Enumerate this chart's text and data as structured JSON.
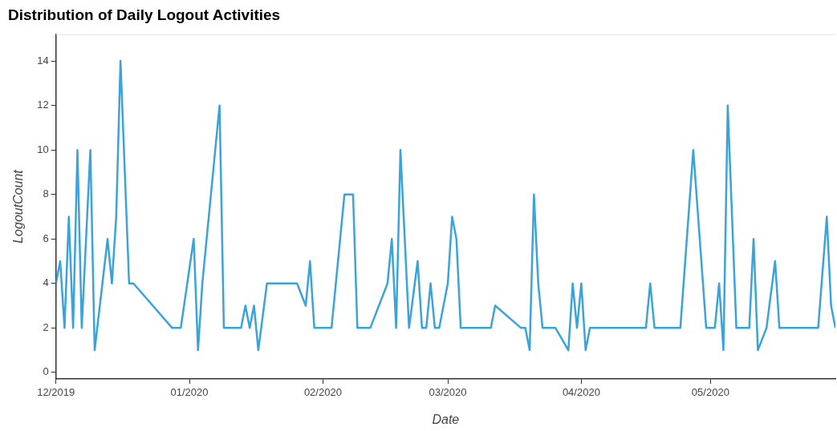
{
  "chart_data": {
    "type": "line",
    "title": "Distribution of Daily Logout Activities",
    "xlabel": "Date",
    "ylabel": "LogoutCount",
    "x": [
      "2019-12-01",
      "2019-12-02",
      "2019-12-03",
      "2019-12-04",
      "2019-12-05",
      "2019-12-06",
      "2019-12-07",
      "2019-12-09",
      "2019-12-10",
      "2019-12-13",
      "2019-12-14",
      "2019-12-15",
      "2019-12-16",
      "2019-12-18",
      "2019-12-19",
      "2019-12-28",
      "2019-12-30",
      "2020-01-02",
      "2020-01-03",
      "2020-01-04",
      "2020-01-08",
      "2020-01-09",
      "2020-01-13",
      "2020-01-14",
      "2020-01-15",
      "2020-01-16",
      "2020-01-17",
      "2020-01-19",
      "2020-01-26",
      "2020-01-28",
      "2020-01-29",
      "2020-01-30",
      "2020-02-03",
      "2020-02-06",
      "2020-02-08",
      "2020-02-09",
      "2020-02-12",
      "2020-02-16",
      "2020-02-17",
      "2020-02-18",
      "2020-02-19",
      "2020-02-21",
      "2020-02-23",
      "2020-02-24",
      "2020-02-25",
      "2020-02-26",
      "2020-02-27",
      "2020-02-28",
      "2020-03-01",
      "2020-03-02",
      "2020-03-03",
      "2020-03-04",
      "2020-03-11",
      "2020-03-12",
      "2020-03-18",
      "2020-03-19",
      "2020-03-20",
      "2020-03-21",
      "2020-03-22",
      "2020-03-23",
      "2020-03-26",
      "2020-03-29",
      "2020-03-30",
      "2020-03-31",
      "2020-04-01",
      "2020-04-02",
      "2020-04-03",
      "2020-04-16",
      "2020-04-17",
      "2020-04-18",
      "2020-04-24",
      "2020-04-27",
      "2020-04-30",
      "2020-05-02",
      "2020-05-03",
      "2020-05-04",
      "2020-05-05",
      "2020-05-07",
      "2020-05-10",
      "2020-05-11",
      "2020-05-12",
      "2020-05-14",
      "2020-05-16",
      "2020-05-17",
      "2020-05-26",
      "2020-05-28",
      "2020-05-29",
      "2020-05-30"
    ],
    "series": [
      {
        "color": "#3aa3dc",
        "values": [
          4,
          5,
          2,
          7,
          2,
          10,
          2,
          10,
          1,
          6,
          4,
          7,
          14,
          4,
          4,
          2,
          2,
          6,
          1,
          4,
          12,
          2,
          2,
          3,
          2,
          3,
          1,
          4,
          4,
          3,
          5,
          2,
          2,
          8,
          8,
          2,
          2,
          4,
          6,
          2,
          10,
          2,
          5,
          2,
          2,
          4,
          2,
          2,
          4,
          7,
          6,
          2,
          2,
          3,
          2,
          2,
          1,
          8,
          4,
          2,
          2,
          1,
          4,
          2,
          4,
          1,
          2,
          2,
          4,
          2,
          2,
          10,
          2,
          2,
          4,
          1,
          12,
          2,
          2,
          6,
          1,
          2,
          5,
          2,
          2,
          7,
          3,
          2
        ]
      }
    ],
    "xlim": [
      "2019-12-01",
      "2020-05-30"
    ],
    "xticks": [
      {
        "value": "2019-12-01",
        "label": "12/2019"
      },
      {
        "value": "2020-01-01",
        "label": "01/2020"
      },
      {
        "value": "2020-02-01",
        "label": "02/2020"
      },
      {
        "value": "2020-03-01",
        "label": "03/2020"
      },
      {
        "value": "2020-04-01",
        "label": "04/2020"
      },
      {
        "value": "2020-05-01",
        "label": "05/2020"
      }
    ],
    "ylim": [
      -0.3,
      15.2
    ],
    "yticks": [
      0,
      2,
      4,
      6,
      8,
      10,
      12,
      14
    ],
    "grid": false,
    "legend": false,
    "marker": "none",
    "line_style": "solid"
  }
}
